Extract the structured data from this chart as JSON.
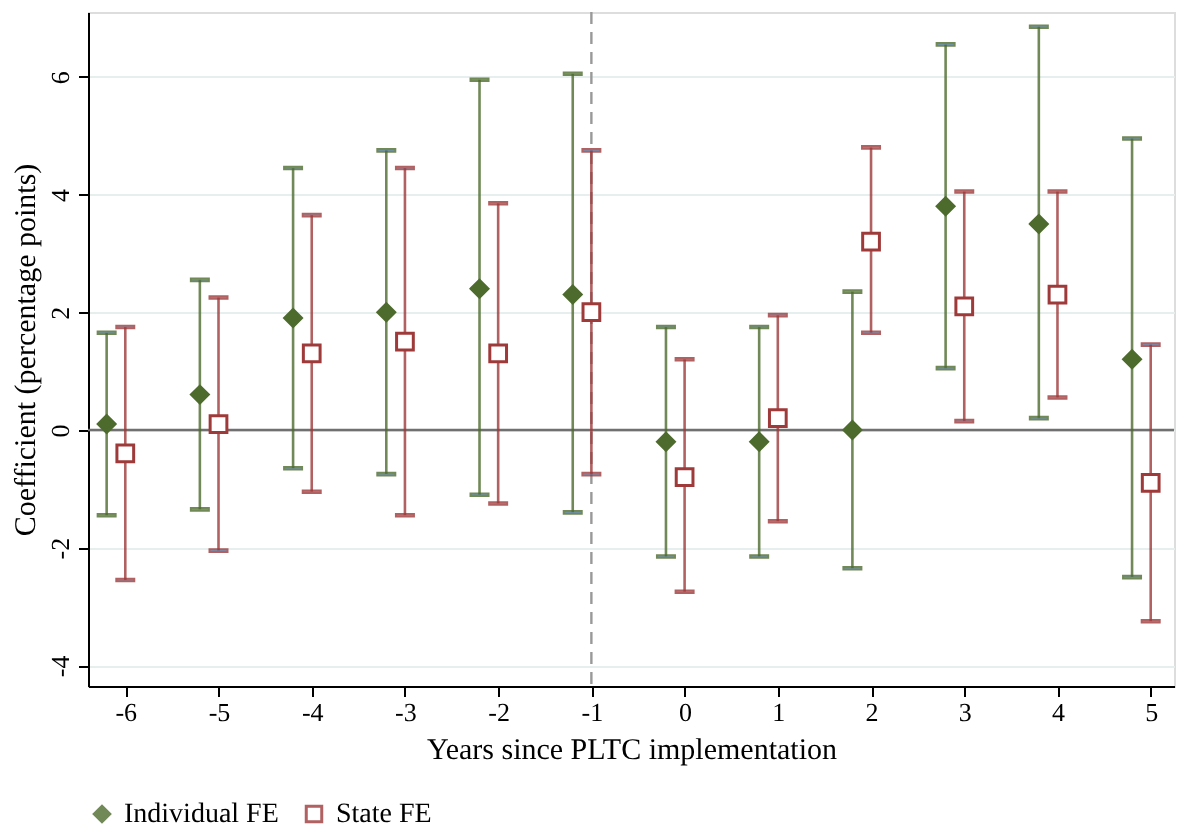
{
  "chart_data": {
    "type": "scatter",
    "xlabel": "Years since PLTC implementation",
    "ylabel": "Coefficient (percentage points)",
    "xlim": [
      -6.4,
      5.25
    ],
    "xticks": [
      -6,
      -5,
      -4,
      -3,
      -2,
      -1,
      0,
      1,
      2,
      3,
      4,
      5
    ],
    "ylim": [
      -4.35,
      7.1
    ],
    "yticks": [
      -4,
      -2,
      0,
      2,
      4,
      6
    ],
    "grid": "y",
    "legend": "bottom",
    "ref_lines": [
      {
        "axis": "y",
        "value": 0,
        "color": "#707070",
        "line_style": "solid"
      },
      {
        "axis": "x",
        "value": -1,
        "color": "#999999",
        "line_style": "dashed"
      }
    ],
    "series": [
      {
        "name": "Individual FE",
        "color": "#4e6b2e",
        "marker": "diamond",
        "x": [
          -6.2,
          -5.2,
          -4.2,
          -3.2,
          -2.2,
          -1.2,
          -0.2,
          0.8,
          1.8,
          2.8,
          3.8,
          4.8
        ],
        "values": [
          0.1,
          0.6,
          1.9,
          2.0,
          2.4,
          2.3,
          -0.2,
          -0.2,
          0.0,
          3.8,
          3.5,
          1.2
        ],
        "errors": [
          [
            -1.45,
            1.65
          ],
          [
            -1.35,
            2.55
          ],
          [
            -0.65,
            4.45
          ],
          [
            -0.75,
            4.75
          ],
          [
            -1.1,
            5.95
          ],
          [
            -1.4,
            6.05
          ],
          [
            -2.15,
            1.75
          ],
          [
            -2.15,
            1.75
          ],
          [
            -2.35,
            2.35
          ],
          [
            1.05,
            6.55
          ],
          [
            0.2,
            6.85
          ],
          [
            -2.5,
            4.95
          ]
        ]
      },
      {
        "name": "State FE",
        "color": "#9e3a3a",
        "marker": "square",
        "x": [
          -6,
          -5,
          -4,
          -3,
          -2,
          -1,
          0,
          1,
          2,
          3,
          4,
          5
        ],
        "values": [
          -0.4,
          0.1,
          1.3,
          1.5,
          1.3,
          2.0,
          -0.8,
          0.2,
          3.2,
          2.1,
          2.3,
          -0.9
        ],
        "errors": [
          [
            -2.55,
            1.75
          ],
          [
            -2.05,
            2.25
          ],
          [
            -1.05,
            3.65
          ],
          [
            -1.45,
            4.45
          ],
          [
            -1.25,
            3.85
          ],
          [
            -0.75,
            4.75
          ],
          [
            -2.75,
            1.2
          ],
          [
            -1.55,
            1.95
          ],
          [
            1.65,
            4.8
          ],
          [
            0.15,
            4.05
          ],
          [
            0.55,
            4.05
          ],
          [
            -3.25,
            1.45
          ]
        ]
      }
    ]
  }
}
